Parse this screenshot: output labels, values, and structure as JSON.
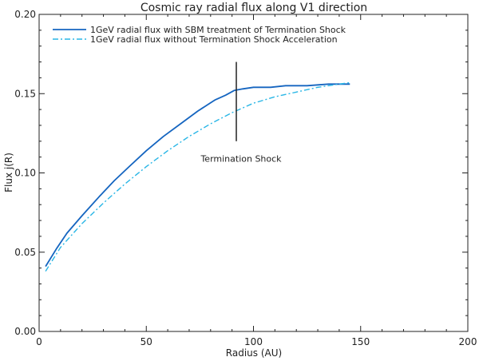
{
  "chart_data": {
    "type": "line",
    "title": "Cosmic ray radial flux along V1 direction",
    "xlabel": "Radius (AU)",
    "ylabel": "Flux j(R)",
    "xlim": [
      0,
      200
    ],
    "ylim": [
      0.0,
      0.2
    ],
    "xticks": [
      "0",
      "50",
      "100",
      "150",
      "200"
    ],
    "yticks": [
      "0.00",
      "0.05",
      "0.10",
      "0.15",
      "0.20"
    ],
    "xtick_values": [
      0,
      50,
      100,
      150,
      200
    ],
    "ytick_values": [
      0.0,
      0.05,
      0.1,
      0.15,
      0.2
    ],
    "grid": false,
    "legend_position": "top-left",
    "series": [
      {
        "name": "1GeV radial flux with SBM treatment of Termination Shock",
        "color": "#1565c0",
        "style": "solid",
        "x": [
          3,
          8,
          13,
          20,
          28,
          35,
          42,
          50,
          58,
          66,
          74,
          82,
          87,
          91,
          95,
          100,
          108,
          115,
          125,
          135,
          145
        ],
        "y": [
          0.041,
          0.052,
          0.062,
          0.073,
          0.085,
          0.095,
          0.104,
          0.114,
          0.123,
          0.131,
          0.139,
          0.146,
          0.149,
          0.152,
          0.153,
          0.154,
          0.154,
          0.155,
          0.155,
          0.156,
          0.156
        ]
      },
      {
        "name": "1GeV radial flux without Termination Shock Acceleration",
        "color": "#29b6e6",
        "style": "dashdot",
        "x": [
          3,
          10,
          20,
          30,
          40,
          50,
          60,
          70,
          80,
          90,
          100,
          110,
          120,
          130,
          140,
          145
        ],
        "y": [
          0.038,
          0.053,
          0.068,
          0.081,
          0.093,
          0.104,
          0.114,
          0.123,
          0.131,
          0.138,
          0.144,
          0.148,
          0.151,
          0.154,
          0.156,
          0.157
        ]
      }
    ],
    "annotations": [
      {
        "text": "Termination Shock",
        "line_x": 92,
        "line_y": [
          0.12,
          0.17
        ],
        "text_x": 92,
        "text_y": 0.111
      }
    ]
  }
}
